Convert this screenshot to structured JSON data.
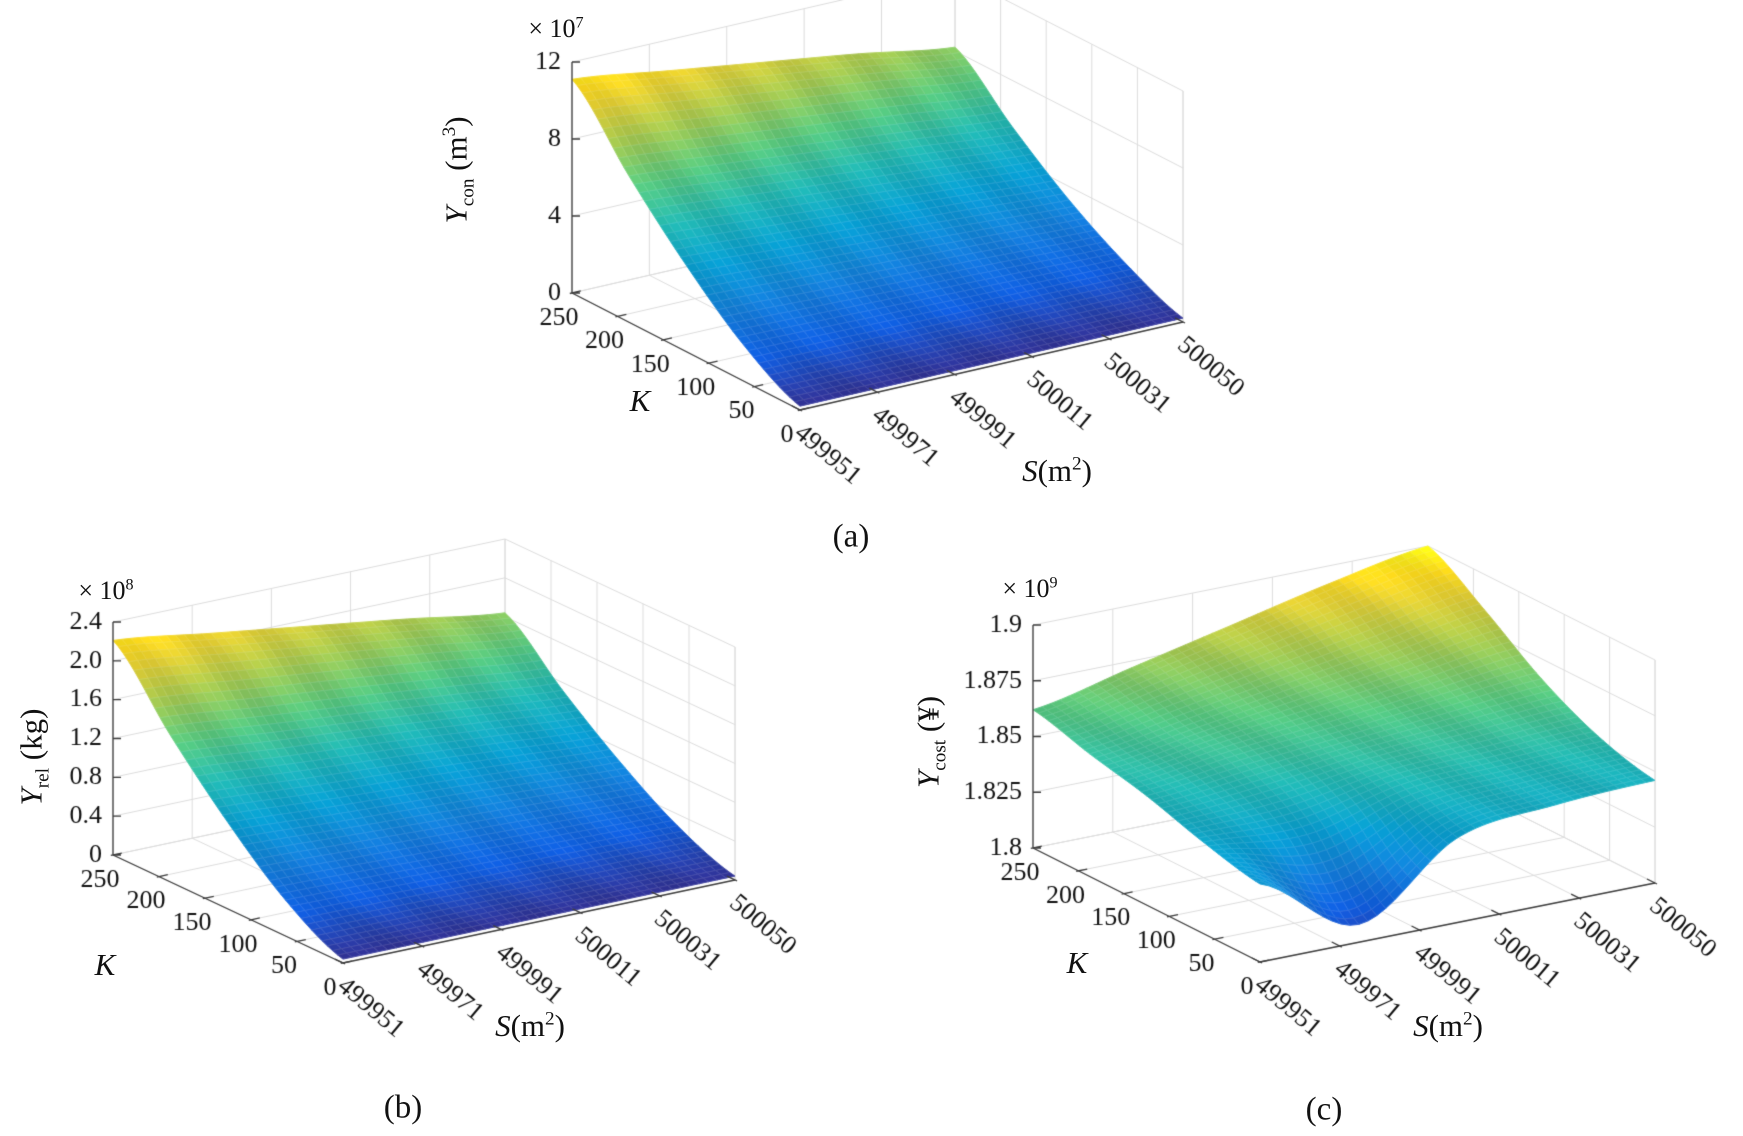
{
  "figure": {
    "background": "#ffffff",
    "description": "Three 3D surface plots of consumption, release and cost versus S and K"
  },
  "panels": [
    {
      "caption": "(a)",
      "z_axis": {
        "var": "Y",
        "sub": "con",
        "unit_pre": " (m",
        "unit_sup": "3",
        "unit_post": ")",
        "exp_base": "× 10",
        "exp_sup": "7",
        "tick_labels": [
          "0",
          "4",
          "8",
          "12"
        ]
      },
      "k_axis": {
        "label": "K",
        "tick_labels": [
          "0",
          "50",
          "100",
          "150",
          "200",
          "250"
        ]
      },
      "s_axis": {
        "var": "S",
        "unit_pre": "(m",
        "unit_sup": "2",
        "unit_post": ")",
        "tick_labels": [
          "499951",
          "499971",
          "499991",
          "500011",
          "500031",
          "500050"
        ]
      },
      "chart_data": {
        "type": "surface",
        "title": "",
        "x_label": "S (m^2)",
        "x_ticks": [
          499951,
          499971,
          499991,
          500011,
          500031,
          500050
        ],
        "y_label": "K",
        "y_ticks": [
          0,
          50,
          100,
          150,
          200,
          250
        ],
        "z_label": "Y_con (m^3)",
        "z_scale_exponent": 7,
        "zlim": [
          0,
          12
        ],
        "color_clim": [
          0,
          11.5
        ],
        "colormap": "parula",
        "grid": true,
        "surface_heights": {
          "K_rows": [
            0,
            62.5,
            125,
            187.5,
            250
          ],
          "S_cols": [
            499951,
            499976,
            500000,
            500025,
            500050
          ],
          "values": [
            [
              0.2,
              0.2,
              0.2,
              0.2,
              0.2
            ],
            [
              1.9,
              1.8,
              1.7,
              1.6,
              1.5
            ],
            [
              4.5,
              4.2,
              3.9,
              3.6,
              3.3
            ],
            [
              7.6,
              7.1,
              6.6,
              6.1,
              5.6
            ],
            [
              11.1,
              10.4,
              9.7,
              9.0,
              8.2
            ]
          ]
        }
      }
    },
    {
      "caption": "(b)",
      "z_axis": {
        "var": "Y",
        "sub": "rel",
        "unit_pre": " (kg)",
        "unit_sup": "",
        "unit_post": "",
        "exp_base": "× 10",
        "exp_sup": "8",
        "tick_labels": [
          "0",
          "0.4",
          "0.8",
          "1.2",
          "1.6",
          "2.0",
          "2.4"
        ]
      },
      "k_axis": {
        "label": "K",
        "tick_labels": [
          "0",
          "50",
          "100",
          "150",
          "200",
          "250"
        ]
      },
      "s_axis": {
        "var": "S",
        "unit_pre": "(m",
        "unit_sup": "2",
        "unit_post": ")",
        "tick_labels": [
          "499951",
          "499971",
          "499991",
          "500011",
          "500031",
          "500050"
        ]
      },
      "chart_data": {
        "type": "surface",
        "title": "",
        "x_label": "S (m^2)",
        "x_ticks": [
          499951,
          499971,
          499991,
          500011,
          500031,
          500050
        ],
        "y_label": "K",
        "y_ticks": [
          0,
          50,
          100,
          150,
          200,
          250
        ],
        "z_label": "Y_rel (kg)",
        "z_scale_exponent": 8,
        "zlim": [
          0,
          2.4
        ],
        "color_clim": [
          0,
          2.3
        ],
        "colormap": "parula",
        "grid": true,
        "surface_heights": {
          "K_rows": [
            0,
            62.5,
            125,
            187.5,
            250
          ],
          "S_cols": [
            499951,
            499976,
            500000,
            500025,
            500050
          ],
          "values": [
            [
              0.04,
              0.04,
              0.04,
              0.04,
              0.04
            ],
            [
              0.37,
              0.35,
              0.32,
              0.3,
              0.28
            ],
            [
              0.89,
              0.83,
              0.78,
              0.72,
              0.66
            ],
            [
              1.51,
              1.41,
              1.32,
              1.22,
              1.12
            ],
            [
              2.21,
              2.07,
              1.93,
              1.79,
              1.64
            ]
          ]
        }
      }
    },
    {
      "caption": "(c)",
      "z_axis": {
        "var": "Y",
        "sub": "cost",
        "unit_pre": " (¥)",
        "unit_sup": "",
        "unit_post": "",
        "exp_base": "× 10",
        "exp_sup": "9",
        "tick_labels": [
          "1.8",
          "1.825",
          "1.85",
          "1.875",
          "1.9"
        ]
      },
      "k_axis": {
        "label": "K",
        "tick_labels": [
          "0",
          "50",
          "100",
          "150",
          "200",
          "250"
        ]
      },
      "s_axis": {
        "var": "S",
        "unit_pre": "(m",
        "unit_sup": "2",
        "unit_post": ")",
        "tick_labels": [
          "499951",
          "499971",
          "499991",
          "500011",
          "500031",
          "500050"
        ]
      },
      "chart_data": {
        "type": "surface",
        "title": "",
        "x_label": "S (m^2)",
        "x_ticks": [
          499951,
          499971,
          499991,
          500011,
          500031,
          500050
        ],
        "y_label": "K",
        "y_ticks": [
          0,
          50,
          100,
          150,
          200,
          250
        ],
        "z_label": "Y_cost (¥)",
        "z_scale_exponent": 9,
        "zlim": [
          1.8,
          1.9
        ],
        "color_clim": [
          1.8,
          1.9
        ],
        "colormap": "parula",
        "grid": true,
        "surface_heights": {
          "K_rows": [
            0,
            62.5,
            125,
            187.5,
            250
          ],
          "S_cols": [
            499951,
            499976,
            500000,
            500025,
            500050
          ],
          "values": [
            [
              1.835,
              1.808,
              1.838,
              1.844,
              1.846
            ],
            [
              1.841,
              1.839,
              1.849,
              1.851,
              1.853
            ],
            [
              1.849,
              1.854,
              1.858,
              1.862,
              1.866
            ],
            [
              1.855,
              1.862,
              1.869,
              1.876,
              1.884
            ],
            [
              1.862,
              1.872,
              1.882,
              1.892,
              1.9
            ]
          ]
        }
      }
    }
  ]
}
